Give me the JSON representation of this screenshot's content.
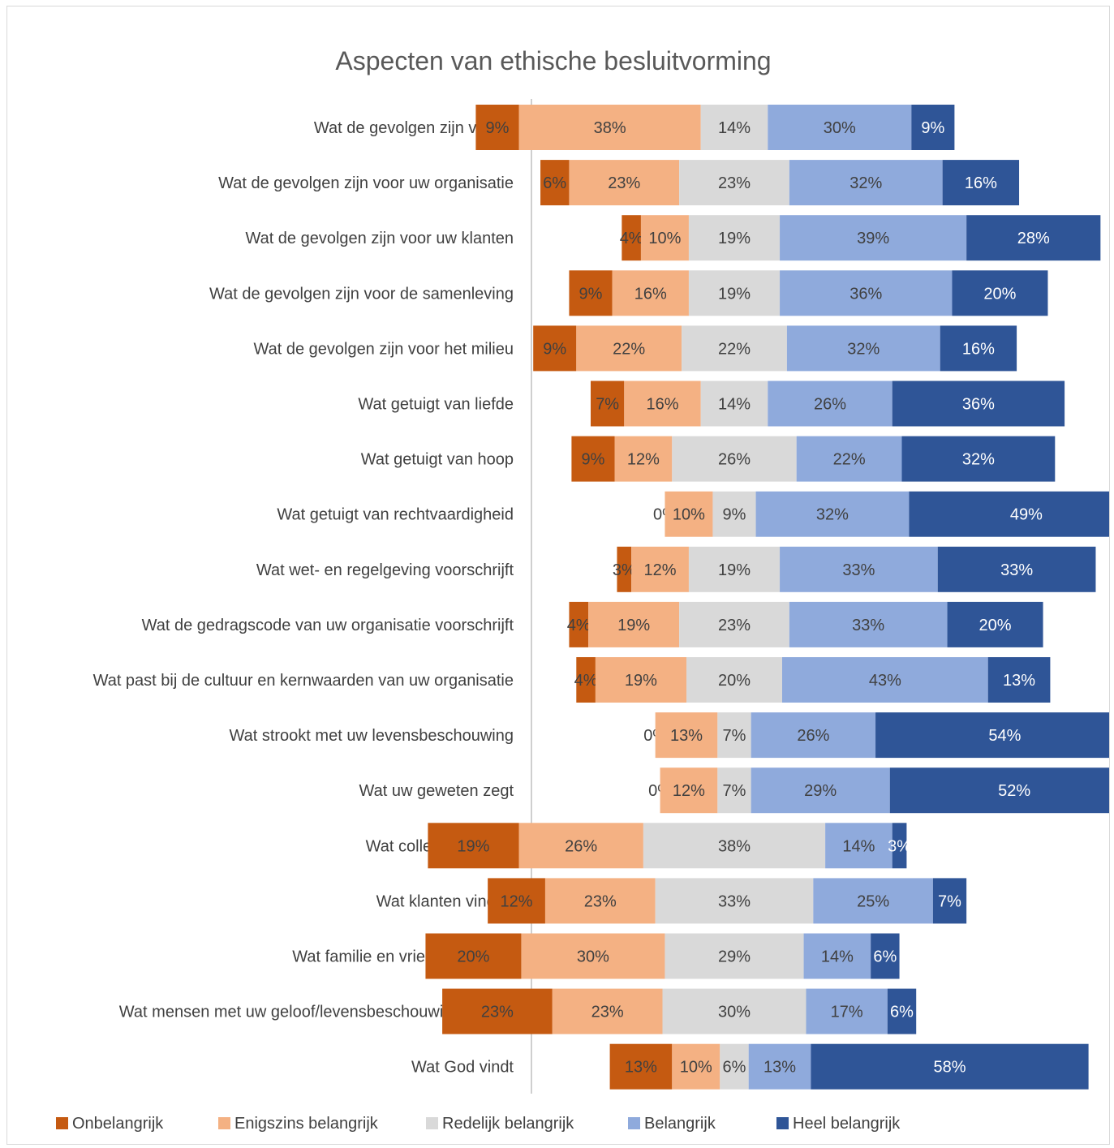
{
  "chart_data": {
    "type": "bar",
    "orientation": "horizontal-diverging-stacked",
    "title": "Aspecten van ethische besluitvorming",
    "categories": [
      "Wat de gevolgen zijn voor u",
      "Wat de gevolgen zijn voor uw organisatie",
      "Wat de gevolgen zijn voor uw klanten",
      "Wat de gevolgen zijn voor de samenleving",
      "Wat de gevolgen zijn voor het milieu",
      "Wat getuigt van liefde",
      "Wat getuigt van hoop",
      "Wat getuigt van rechtvaardigheid",
      "Wat wet- en regelgeving voorschrijft",
      "Wat de gedragscode van uw organisatie voorschrijft",
      "Wat past bij de cultuur en kernwaarden van uw organisatie",
      "Wat strookt met uw levensbeschouwing",
      "Wat uw geweten zegt",
      "Wat collega’s vinden",
      "Wat klanten vinden",
      "Wat familie en vrienden vinden",
      "Wat mensen met uw geloof/levensbeschouwing vinden",
      "Wat God vindt"
    ],
    "series": [
      {
        "name": "Onbelangrijk",
        "color": "#c55a11",
        "values": [
          9,
          6,
          4,
          9,
          9,
          7,
          9,
          0,
          3,
          4,
          4,
          0,
          0,
          19,
          12,
          20,
          23,
          13
        ]
      },
      {
        "name": "Enigszins belangrijk",
        "color": "#f4b183",
        "values": [
          38,
          23,
          10,
          16,
          22,
          16,
          12,
          10,
          12,
          19,
          19,
          13,
          12,
          26,
          23,
          30,
          23,
          10
        ]
      },
      {
        "name": "Redelijk belangrijk",
        "color": "#d9d9d9",
        "values": [
          14,
          23,
          19,
          19,
          22,
          14,
          26,
          9,
          19,
          23,
          20,
          7,
          7,
          38,
          33,
          29,
          30,
          6
        ]
      },
      {
        "name": "Belangrijk",
        "color": "#8faadc",
        "values": [
          30,
          32,
          39,
          36,
          32,
          26,
          22,
          32,
          33,
          33,
          43,
          26,
          29,
          14,
          25,
          14,
          17,
          13
        ]
      },
      {
        "name": "Heel belangrijk",
        "color": "#2f5597",
        "values": [
          9,
          16,
          28,
          20,
          16,
          36,
          32,
          49,
          33,
          20,
          13,
          54,
          52,
          3,
          7,
          6,
          6,
          58
        ]
      }
    ],
    "value_suffix": "%",
    "grid": false,
    "legend_position": "bottom"
  }
}
